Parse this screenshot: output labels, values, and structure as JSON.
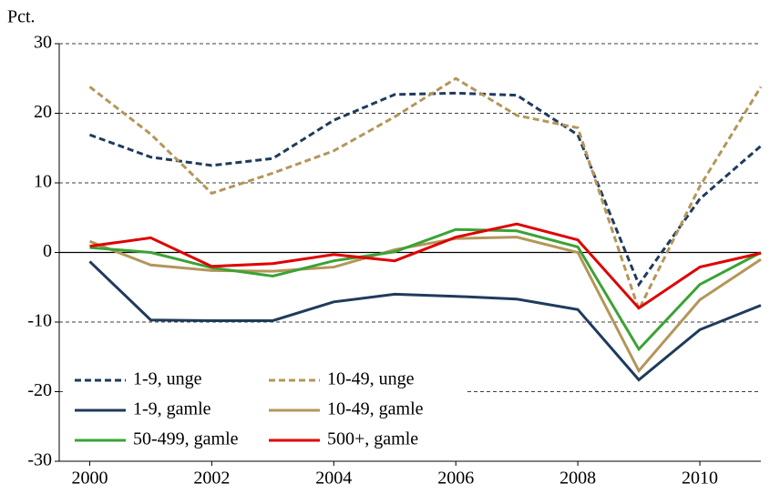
{
  "chart_data": {
    "type": "line",
    "y_label": "Pct.",
    "x": [
      2000,
      2001,
      2002,
      2003,
      2004,
      2005,
      2006,
      2007,
      2008,
      2009,
      2010,
      2011
    ],
    "xlim": [
      1999.5,
      2011
    ],
    "xticks": [
      2000,
      2002,
      2004,
      2006,
      2008,
      2010
    ],
    "ylim": [
      -30,
      30
    ],
    "yticks": [
      -30,
      -20,
      -10,
      0,
      10,
      20,
      30
    ],
    "grid": true,
    "legend": "lower left",
    "series": [
      {
        "name": "1-9, unge",
        "color": "#1f3b5c",
        "dashed": true,
        "values": [
          16.9,
          13.7,
          12.5,
          13.5,
          19,
          22.7,
          22.9,
          22.6,
          16.9,
          -4.6,
          7.7,
          15.3
        ]
      },
      {
        "name": "10-49, unge",
        "color": "#b4965a",
        "dashed": true,
        "values": [
          23.8,
          17,
          8.5,
          11.4,
          14.6,
          19.5,
          25,
          19.7,
          17.9,
          -8.2,
          9.5,
          23.8
        ]
      },
      {
        "name": "1-9, gamle",
        "color": "#1f3b5c",
        "dashed": false,
        "values": [
          -1.3,
          -9.7,
          -9.8,
          -9.8,
          -7.1,
          -6.0,
          -6.3,
          -6.7,
          -8.2,
          -18.3,
          -11.1,
          -7.6
        ]
      },
      {
        "name": "10-49, gamle",
        "color": "#b4965a",
        "dashed": false,
        "values": [
          1.6,
          -1.8,
          -2.6,
          -2.7,
          -2.1,
          0.4,
          2.0,
          2.2,
          0,
          -17,
          -6.8,
          -1.0
        ]
      },
      {
        "name": "50-499, gamle",
        "color": "#3aa335",
        "dashed": false,
        "values": [
          0.7,
          0,
          -2.2,
          -3.4,
          -1.2,
          0.1,
          3.3,
          3.1,
          0.8,
          -13.9,
          -4.6,
          0
        ]
      },
      {
        "name": "500+, gamle",
        "color": "#e00000",
        "dashed": false,
        "values": [
          0.9,
          2.1,
          -2,
          -1.6,
          -0.3,
          -1.2,
          2.2,
          4.1,
          1.8,
          -8,
          -2.1,
          -0.1
        ]
      }
    ]
  }
}
